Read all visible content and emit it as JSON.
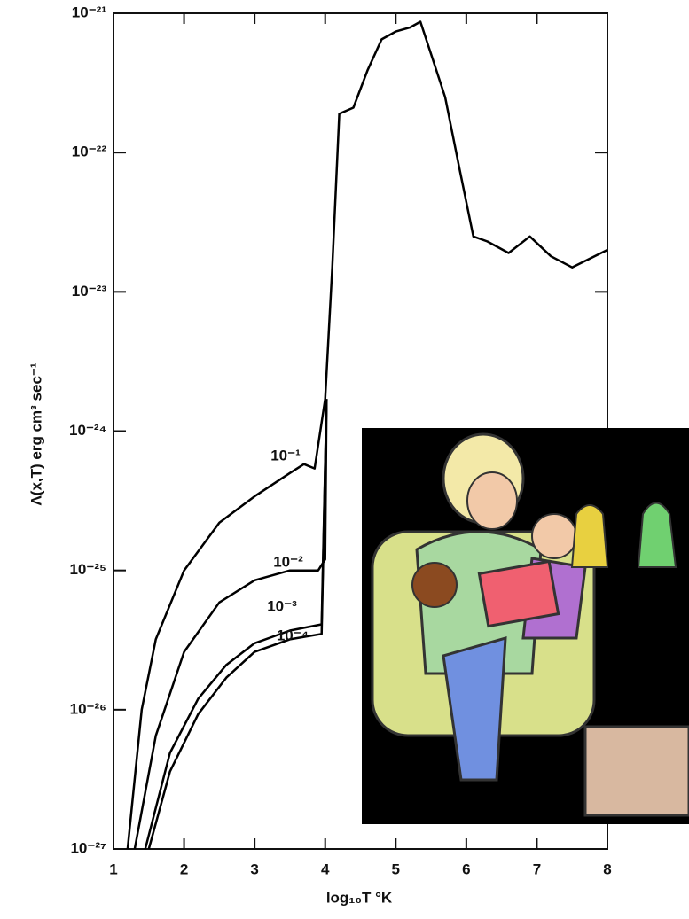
{
  "chart_data": {
    "type": "line",
    "xlabel": "log₁₀T °K",
    "ylabel": "Λ(x,T) erg cm³ sec⁻¹",
    "xlim": [
      1,
      8
    ],
    "xticks": [
      1,
      2,
      3,
      4,
      5,
      6,
      7,
      8
    ],
    "ylim": [
      1e-27,
      1e-21
    ],
    "log_y": true,
    "yticks": [
      {
        "value": 1e-27,
        "label": "10⁻²⁷"
      },
      {
        "value": 1e-26,
        "label": "10⁻²⁶"
      },
      {
        "value": 1e-25,
        "label": "10⁻²⁵"
      },
      {
        "value": 1e-24,
        "label": "10⁻²⁴"
      },
      {
        "value": 1e-23,
        "label": "10⁻²³"
      },
      {
        "value": 1e-22,
        "label": "10⁻²²"
      },
      {
        "value": 1e-21,
        "label": "10⁻²¹"
      }
    ],
    "series": [
      {
        "name": "10⁻¹",
        "color": "#000000",
        "x": [
          1.2,
          1.4,
          1.6,
          2.0,
          2.5,
          3.0,
          3.5,
          3.7,
          3.85,
          4.0,
          4.1,
          4.2,
          4.4,
          4.6,
          4.8,
          5.0,
          5.2,
          5.35,
          5.5,
          5.7,
          5.9,
          6.1,
          6.3,
          6.6,
          6.9,
          7.2,
          7.5,
          8.0
        ],
        "values": [
          1e-27,
          1e-26,
          3.2e-26,
          1e-25,
          2.2e-25,
          3.4e-25,
          5e-25,
          5.8e-25,
          5.4e-25,
          1.7e-24,
          1.5e-23,
          1.9e-22,
          2.1e-22,
          3.9e-22,
          6.5e-22,
          7.4e-22,
          7.9e-22,
          8.7e-22,
          5.1e-22,
          2.5e-22,
          7.8e-23,
          2.5e-23,
          2.3e-23,
          1.9e-23,
          2.5e-23,
          1.8e-23,
          1.5e-23,
          2e-23
        ]
      },
      {
        "name": "10⁻²",
        "color": "#000000",
        "x": [
          1.3,
          1.6,
          2.0,
          2.5,
          3.0,
          3.5,
          3.9,
          4.0,
          4.02
        ],
        "values": [
          1e-27,
          6.5e-27,
          2.6e-26,
          5.9e-26,
          8.5e-26,
          1e-25,
          1e-25,
          1.2e-25,
          1.7e-24
        ]
      },
      {
        "name": "10⁻³",
        "color": "#000000",
        "x": [
          1.45,
          1.8,
          2.2,
          2.6,
          3.0,
          3.5,
          3.95,
          4.02
        ],
        "values": [
          1e-27,
          4.9e-27,
          1.2e-26,
          2.1e-26,
          3e-26,
          3.7e-26,
          4.1e-26,
          1.7e-24
        ]
      },
      {
        "name": "10⁻⁴",
        "color": "#000000",
        "x": [
          1.5,
          1.8,
          2.2,
          2.6,
          3.0,
          3.5,
          3.95,
          4.02
        ],
        "values": [
          1e-27,
          3.6e-27,
          9.3e-27,
          1.7e-26,
          2.6e-26,
          3.2e-26,
          3.5e-26,
          1.7e-24
        ]
      }
    ]
  }
}
